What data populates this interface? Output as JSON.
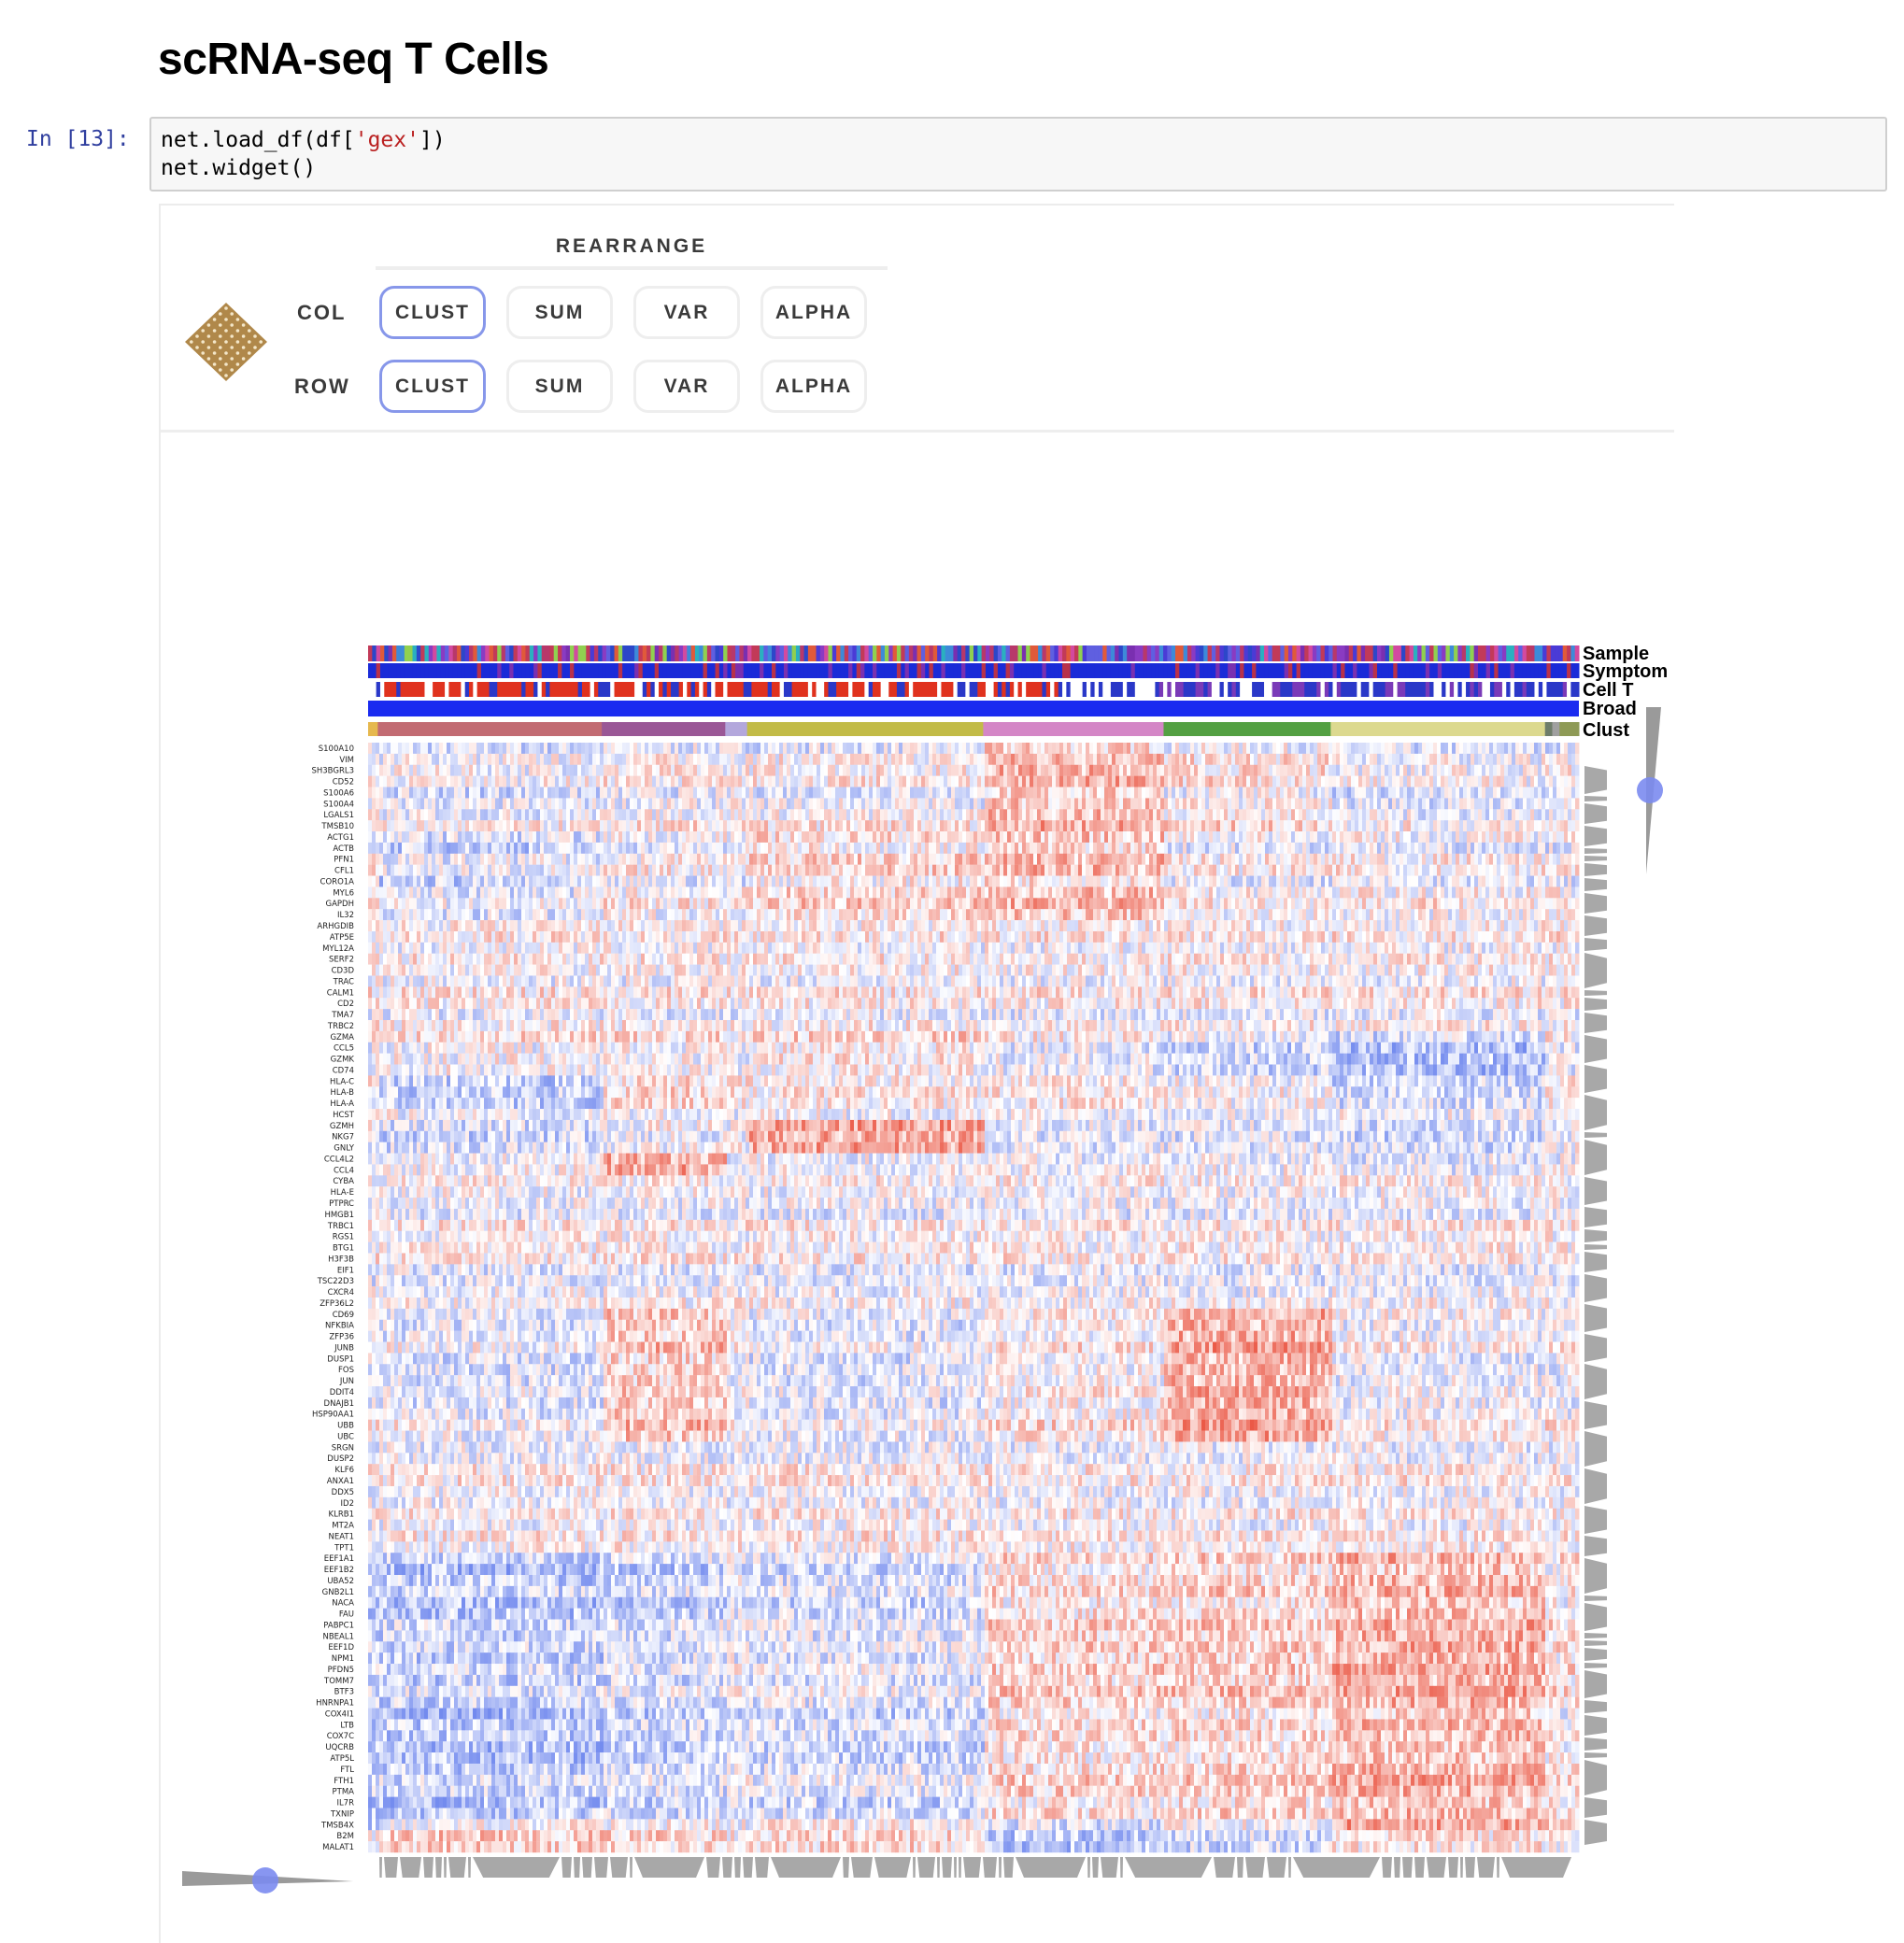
{
  "notebook": {
    "title": "scRNA-seq T Cells",
    "prompt": "In [13]:",
    "code": {
      "line1_pre": "net.load_df(df[",
      "line1_str": "'gex'",
      "line1_post": "])",
      "line2": "net.widget()"
    }
  },
  "widget": {
    "rearrange_title": "REARRANGE",
    "col_label": "COL",
    "row_label": "ROW",
    "col_buttons": [
      {
        "label": "CLUST",
        "active": true
      },
      {
        "label": "SUM",
        "active": false
      },
      {
        "label": "VAR",
        "active": false
      },
      {
        "label": "ALPHA",
        "active": false
      }
    ],
    "row_buttons": [
      {
        "label": "CLUST",
        "active": true
      },
      {
        "label": "SUM",
        "active": false
      },
      {
        "label": "VAR",
        "active": false
      },
      {
        "label": "ALPHA",
        "active": false
      }
    ],
    "colors": {
      "active_border": "#8797ea",
      "logo": "#b0884a",
      "slider_knob": "#7b8bef",
      "up": "#e8432e",
      "down": "#3d5ee8"
    },
    "icons": {
      "logo": "clustergrammer-logo-icon",
      "slider": "slider-knob-icon"
    }
  },
  "chart_data": {
    "type": "heatmap",
    "category_labels": [
      "Sample",
      "Symptom",
      "Cell T",
      "Broad",
      "Clust"
    ],
    "cluster_bar_colors": [
      "#e6b84e",
      "#c26b72",
      "#9a5796",
      "#b3a7dc",
      "#c2bb47",
      "#d486c6",
      "#53a042",
      "#dcd98f",
      "#6e7d6a",
      "#a0a0a0",
      "#8e9a56"
    ],
    "genes": [
      "S100A10",
      "VIM",
      "SH3BGRL3",
      "CD52",
      "S100A6",
      "S100A4",
      "LGALS1",
      "TMSB10",
      "ACTG1",
      "ACTB",
      "PFN1",
      "CFL1",
      "CORO1A",
      "MYL6",
      "GAPDH",
      "IL32",
      "ARHGDIB",
      "ATP5E",
      "MYL12A",
      "SERF2",
      "CD3D",
      "TRAC",
      "CALM1",
      "CD2",
      "TMA7",
      "TRBC2",
      "GZMA",
      "CCL5",
      "GZMK",
      "CD74",
      "HLA-C",
      "HLA-B",
      "HLA-A",
      "HCST",
      "GZMH",
      "NKG7",
      "GNLY",
      "CCL4L2",
      "CCL4",
      "CYBA",
      "HLA-E",
      "PTPRC",
      "HMGB1",
      "TRBC1",
      "RGS1",
      "BTG1",
      "H3F3B",
      "EIF1",
      "TSC22D3",
      "CXCR4",
      "ZFP36L2",
      "CD69",
      "NFKBIA",
      "ZFP36",
      "JUNB",
      "DUSP1",
      "FOS",
      "JUN",
      "DDIT4",
      "DNAJB1",
      "HSP90AA1",
      "UBB",
      "UBC",
      "SRGN",
      "DUSP2",
      "KLF6",
      "ANXA1",
      "DDX5",
      "ID2",
      "KLRB1",
      "MT2A",
      "NEAT1",
      "TPT1",
      "EEF1A1",
      "EEF1B2",
      "UBA52",
      "GNB2L1",
      "NACA",
      "FAU",
      "PABPC1",
      "NBEAL1",
      "EEF1D",
      "NPM1",
      "PFDN5",
      "TOMM7",
      "BTF3",
      "HNRNPA1",
      "COX4I1",
      "LTB",
      "COX7C",
      "UQCRB",
      "ATP5L",
      "FTL",
      "FTH1",
      "PTMA",
      "IL7R",
      "TXNIP",
      "TMSB4X",
      "B2M",
      "MALAT1"
    ]
  }
}
